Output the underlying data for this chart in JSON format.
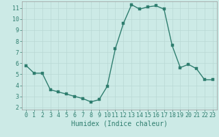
{
  "x": [
    0,
    1,
    2,
    3,
    4,
    5,
    6,
    7,
    8,
    9,
    10,
    11,
    12,
    13,
    14,
    15,
    16,
    17,
    18,
    19,
    20,
    21,
    22,
    23
  ],
  "y": [
    5.8,
    5.1,
    5.1,
    3.6,
    3.4,
    3.2,
    3.0,
    2.8,
    2.5,
    2.7,
    3.9,
    7.3,
    9.6,
    11.3,
    10.9,
    11.1,
    11.2,
    10.9,
    7.6,
    5.6,
    5.9,
    5.5,
    4.5,
    4.5
  ],
  "line_color": "#2e7d6e",
  "marker": "s",
  "marker_size": 2.2,
  "line_width": 1.0,
  "bg_color": "#cceae6",
  "grid_color": "#b8d8d4",
  "xlabel": "Humidex (Indice chaleur)",
  "xlabel_fontsize": 7,
  "tick_fontsize": 6,
  "xlim": [
    -0.5,
    23.5
  ],
  "ylim": [
    1.8,
    11.6
  ],
  "yticks": [
    2,
    3,
    4,
    5,
    6,
    7,
    8,
    9,
    10,
    11
  ],
  "xtick_labels": [
    "0",
    "1",
    "2",
    "3",
    "4",
    "5",
    "6",
    "7",
    "8",
    "9",
    "10",
    "11",
    "12",
    "13",
    "14",
    "15",
    "16",
    "17",
    "18",
    "19",
    "20",
    "21",
    "22",
    "23"
  ]
}
